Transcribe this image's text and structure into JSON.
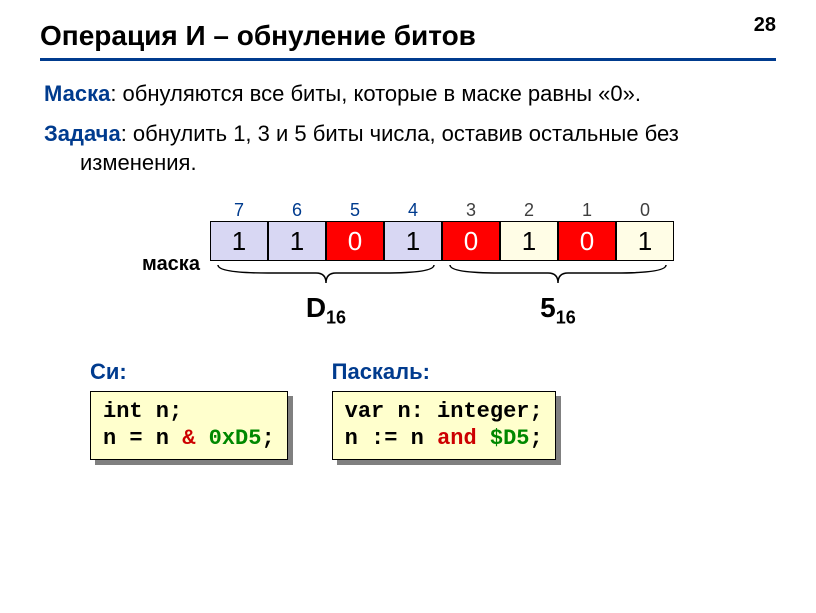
{
  "pageNum": "28",
  "title": "Операция И – обнуление битов",
  "mask_kw": "Маска",
  "mask_text": ": обнуляются все биты, которые в маске равны «0».",
  "task_kw": "Задача",
  "task_text": ": обнулить 1, 3 и 5 биты числа, оставив остальные без изменения.",
  "mask_label": "маска",
  "bit_indices": [
    "7",
    "6",
    "5",
    "4",
    "3",
    "2",
    "1",
    "0"
  ],
  "idx_is_high": [
    true,
    true,
    true,
    true,
    false,
    false,
    false,
    false
  ],
  "bit_values": [
    "1",
    "1",
    "0",
    "1",
    "0",
    "1",
    "0",
    "1"
  ],
  "bit_bg": [
    "lav",
    "lav",
    "red",
    "lav",
    "red",
    "yel",
    "red",
    "yel"
  ],
  "hex_high_base": "D",
  "hex_high_sub": "16",
  "hex_low_base": "5",
  "hex_low_sub": "16",
  "c_heading": "Си:",
  "c_line1": "int n;",
  "c_l2_a": "n = n ",
  "c_l2_op": "&",
  "c_l2_b": " ",
  "c_l2_val": "0xD5",
  "c_l2_end": ";",
  "p_heading": "Паскаль:",
  "p_line1": "var n: integer;",
  "p_l2_a": "n := n ",
  "p_l2_op": "and",
  "p_l2_b": " ",
  "p_l2_val": "$D5",
  "p_l2_end": ";",
  "colors": {
    "accent": "#003b8e",
    "red": "#ff0000",
    "lav": "#d8d7f3",
    "yel_cell": "#fffde6",
    "code_bg": "#ffffcd",
    "op_red": "#cc0000",
    "val_green": "#008800"
  }
}
